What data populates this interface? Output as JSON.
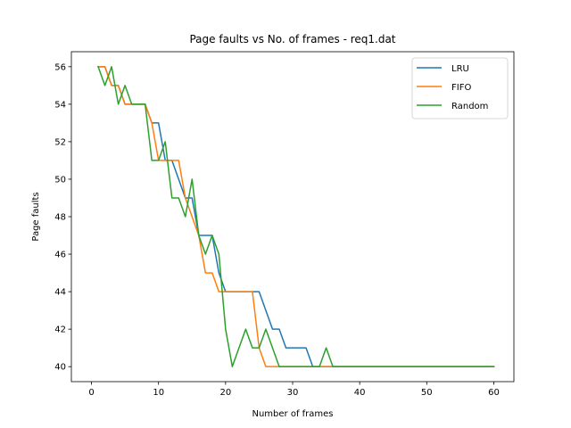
{
  "chart_data": {
    "type": "line",
    "title": "Page faults vs No. of frames - req1.dat",
    "xlabel": "Number of frames",
    "ylabel": "Page faults",
    "xlim": [
      -3,
      63
    ],
    "ylim": [
      39.2,
      56.8
    ],
    "xticks": [
      0,
      10,
      20,
      30,
      40,
      50,
      60
    ],
    "yticks": [
      40,
      42,
      44,
      46,
      48,
      50,
      52,
      54,
      56
    ],
    "legend_position": "top-right",
    "series": [
      {
        "name": "LRU",
        "color": "#1f77b4",
        "x": [
          1,
          2,
          3,
          4,
          5,
          6,
          7,
          8,
          9,
          10,
          11,
          12,
          13,
          14,
          15,
          16,
          17,
          18,
          19,
          20,
          21,
          22,
          23,
          24,
          25,
          26,
          27,
          28,
          29,
          30,
          31,
          32,
          33,
          34,
          35,
          36,
          37,
          38,
          39,
          40,
          41,
          42,
          43,
          44,
          45,
          46,
          47,
          48,
          49,
          50,
          51,
          52,
          53,
          54,
          55,
          56,
          57,
          58,
          59,
          60
        ],
        "y": [
          56,
          56,
          55,
          55,
          54,
          54,
          54,
          54,
          53,
          53,
          51,
          51,
          50,
          49,
          49,
          47,
          47,
          47,
          45,
          44,
          44,
          44,
          44,
          44,
          44,
          43,
          42,
          42,
          41,
          41,
          41,
          41,
          40,
          40,
          40,
          40,
          40,
          40,
          40,
          40,
          40,
          40,
          40,
          40,
          40,
          40,
          40,
          40,
          40,
          40,
          40,
          40,
          40,
          40,
          40,
          40,
          40,
          40,
          40,
          40
        ]
      },
      {
        "name": "FIFO",
        "color": "#ff7f0e",
        "x": [
          1,
          2,
          3,
          4,
          5,
          6,
          7,
          8,
          9,
          10,
          11,
          12,
          13,
          14,
          15,
          16,
          17,
          18,
          19,
          20,
          21,
          22,
          23,
          24,
          25,
          26,
          27,
          28,
          29,
          30,
          31,
          32,
          33,
          34,
          35,
          36,
          37,
          38,
          39,
          40,
          41,
          42,
          43,
          44,
          45,
          46,
          47,
          48,
          49,
          50,
          51,
          52,
          53,
          54,
          55,
          56,
          57,
          58,
          59,
          60
        ],
        "y": [
          56,
          56,
          55,
          55,
          54,
          54,
          54,
          54,
          53,
          51,
          51,
          51,
          51,
          49,
          48,
          47,
          45,
          45,
          44,
          44,
          44,
          44,
          44,
          44,
          41,
          40,
          40,
          40,
          40,
          40,
          40,
          40,
          40,
          40,
          40,
          40,
          40,
          40,
          40,
          40,
          40,
          40,
          40,
          40,
          40,
          40,
          40,
          40,
          40,
          40,
          40,
          40,
          40,
          40,
          40,
          40,
          40,
          40,
          40,
          40
        ]
      },
      {
        "name": "Random",
        "color": "#2ca02c",
        "x": [
          1,
          2,
          3,
          4,
          5,
          6,
          7,
          8,
          9,
          10,
          11,
          12,
          13,
          14,
          15,
          16,
          17,
          18,
          19,
          20,
          21,
          22,
          23,
          24,
          25,
          26,
          27,
          28,
          29,
          30,
          31,
          32,
          33,
          34,
          35,
          36,
          37,
          38,
          39,
          40,
          41,
          42,
          43,
          44,
          45,
          46,
          47,
          48,
          49,
          50,
          51,
          52,
          53,
          54,
          55,
          56,
          57,
          58,
          59,
          60
        ],
        "y": [
          56,
          55,
          56,
          54,
          55,
          54,
          54,
          54,
          51,
          51,
          52,
          49,
          49,
          48,
          50,
          47,
          46,
          47,
          46,
          42,
          40,
          41,
          42,
          41,
          41,
          42,
          41,
          40,
          40,
          40,
          40,
          40,
          40,
          40,
          41,
          40,
          40,
          40,
          40,
          40,
          40,
          40,
          40,
          40,
          40,
          40,
          40,
          40,
          40,
          40,
          40,
          40,
          40,
          40,
          40,
          40,
          40,
          40,
          40,
          40
        ]
      }
    ]
  }
}
